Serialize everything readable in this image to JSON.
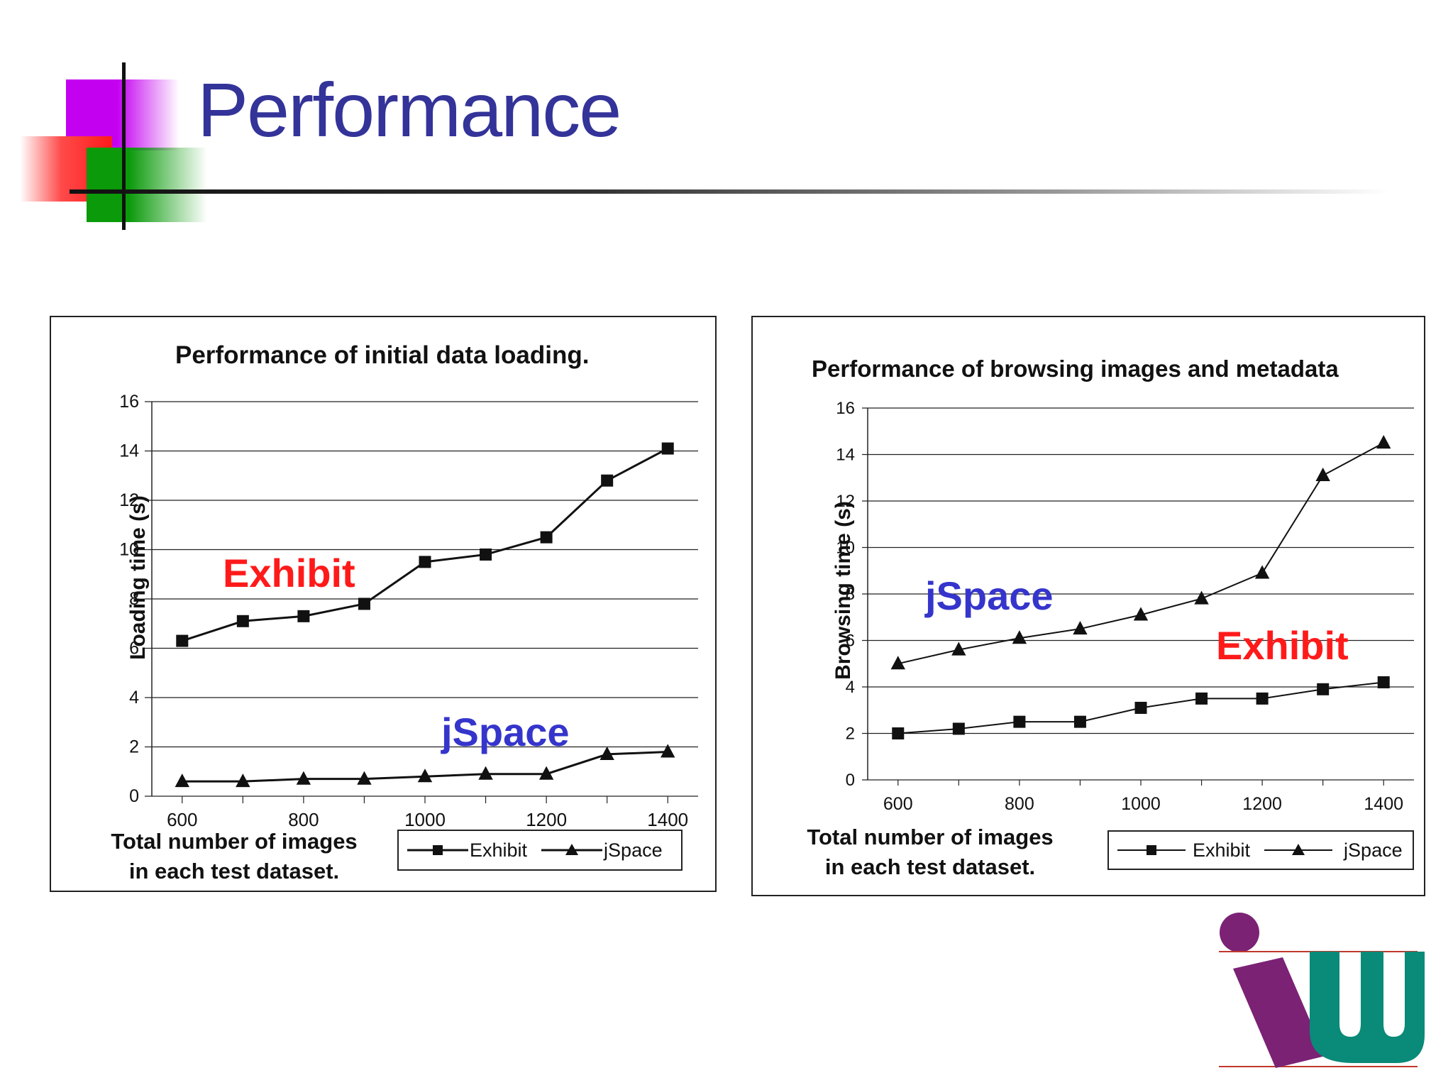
{
  "slide": {
    "title": "Performance"
  },
  "colors": {
    "title": "#333399",
    "exhibit_annotation": "#ff1a1a",
    "jspace_annotation": "#3535cc",
    "logo_purple": "#7b2275",
    "logo_teal": "#0a8a78"
  },
  "chart_data": [
    {
      "type": "line",
      "title": "Performance of initial data loading.",
      "ylabel": "Loading time (s)",
      "xlabel_lines": [
        "Total number of images",
        "in each test dataset."
      ],
      "x": [
        600,
        700,
        800,
        900,
        1000,
        1100,
        1200,
        1300,
        1400
      ],
      "x_tick_labels": [
        "600",
        "800",
        "1000",
        "1200",
        "1400"
      ],
      "y_tick_labels": [
        "0",
        "2",
        "4",
        "6",
        "8",
        "10",
        "12",
        "14",
        "16"
      ],
      "xlim": [
        550,
        1450
      ],
      "ylim": [
        0,
        16
      ],
      "grid": true,
      "series": [
        {
          "name": "Exhibit",
          "marker": "square",
          "values": [
            6.3,
            7.1,
            7.3,
            7.8,
            9.5,
            9.8,
            10.5,
            12.8,
            14.1
          ]
        },
        {
          "name": "jSpace",
          "marker": "triangle",
          "values": [
            0.6,
            0.6,
            0.7,
            0.7,
            0.8,
            0.9,
            0.9,
            1.7,
            1.8
          ]
        }
      ],
      "annotations": [
        {
          "text": "Exhibit",
          "series": "Exhibit"
        },
        {
          "text": "jSpace",
          "series": "jSpace"
        }
      ],
      "legend": {
        "placement": "bottom-right",
        "items": [
          "Exhibit",
          "jSpace"
        ]
      }
    },
    {
      "type": "line",
      "title": "Performance of browsing images and metadata",
      "ylabel": "Browsing time (s)",
      "xlabel_lines": [
        "Total number of images",
        "in each test dataset."
      ],
      "x": [
        600,
        700,
        800,
        900,
        1000,
        1100,
        1200,
        1300,
        1400
      ],
      "x_tick_labels": [
        "600",
        "800",
        "1000",
        "1200",
        "1400"
      ],
      "y_tick_labels": [
        "0",
        "2",
        "4",
        "6",
        "8",
        "10",
        "12",
        "14",
        "16"
      ],
      "xlim": [
        550,
        1450
      ],
      "ylim": [
        0,
        16
      ],
      "grid": true,
      "series": [
        {
          "name": "Exhibit",
          "marker": "square",
          "values": [
            2.0,
            2.2,
            2.5,
            2.5,
            3.1,
            3.5,
            3.5,
            3.9,
            4.2
          ]
        },
        {
          "name": "jSpace",
          "marker": "triangle",
          "values": [
            5.0,
            5.6,
            6.1,
            6.5,
            7.1,
            7.8,
            8.9,
            13.1,
            14.5
          ]
        }
      ],
      "annotations": [
        {
          "text": "jSpace",
          "series": "jSpace"
        },
        {
          "text": "Exhibit",
          "series": "Exhibit"
        }
      ],
      "legend": {
        "placement": "bottom-right",
        "items": [
          "Exhibit",
          "jSpace"
        ]
      }
    }
  ]
}
